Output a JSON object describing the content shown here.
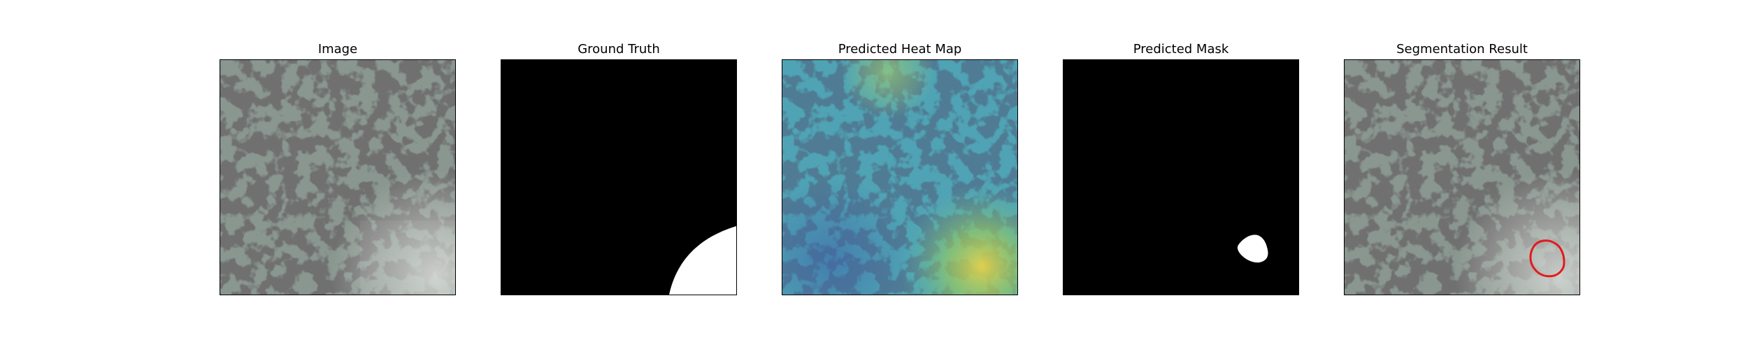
{
  "figure": {
    "panels": [
      {
        "title": "Image",
        "kind": "photo"
      },
      {
        "title": "Ground Truth",
        "kind": "ground-truth-mask"
      },
      {
        "title": "Predicted Heat Map",
        "kind": "heatmap-overlay"
      },
      {
        "title": "Predicted Mask",
        "kind": "predicted-mask"
      },
      {
        "title": "Segmentation Result",
        "kind": "contour-overlay"
      }
    ]
  },
  "colors": {
    "mask_background": "#000000",
    "mask_foreground": "#ffffff",
    "contour": "#e31a1c",
    "texture_base": "#8a9690",
    "texture_spot": "#2b2b2b"
  }
}
